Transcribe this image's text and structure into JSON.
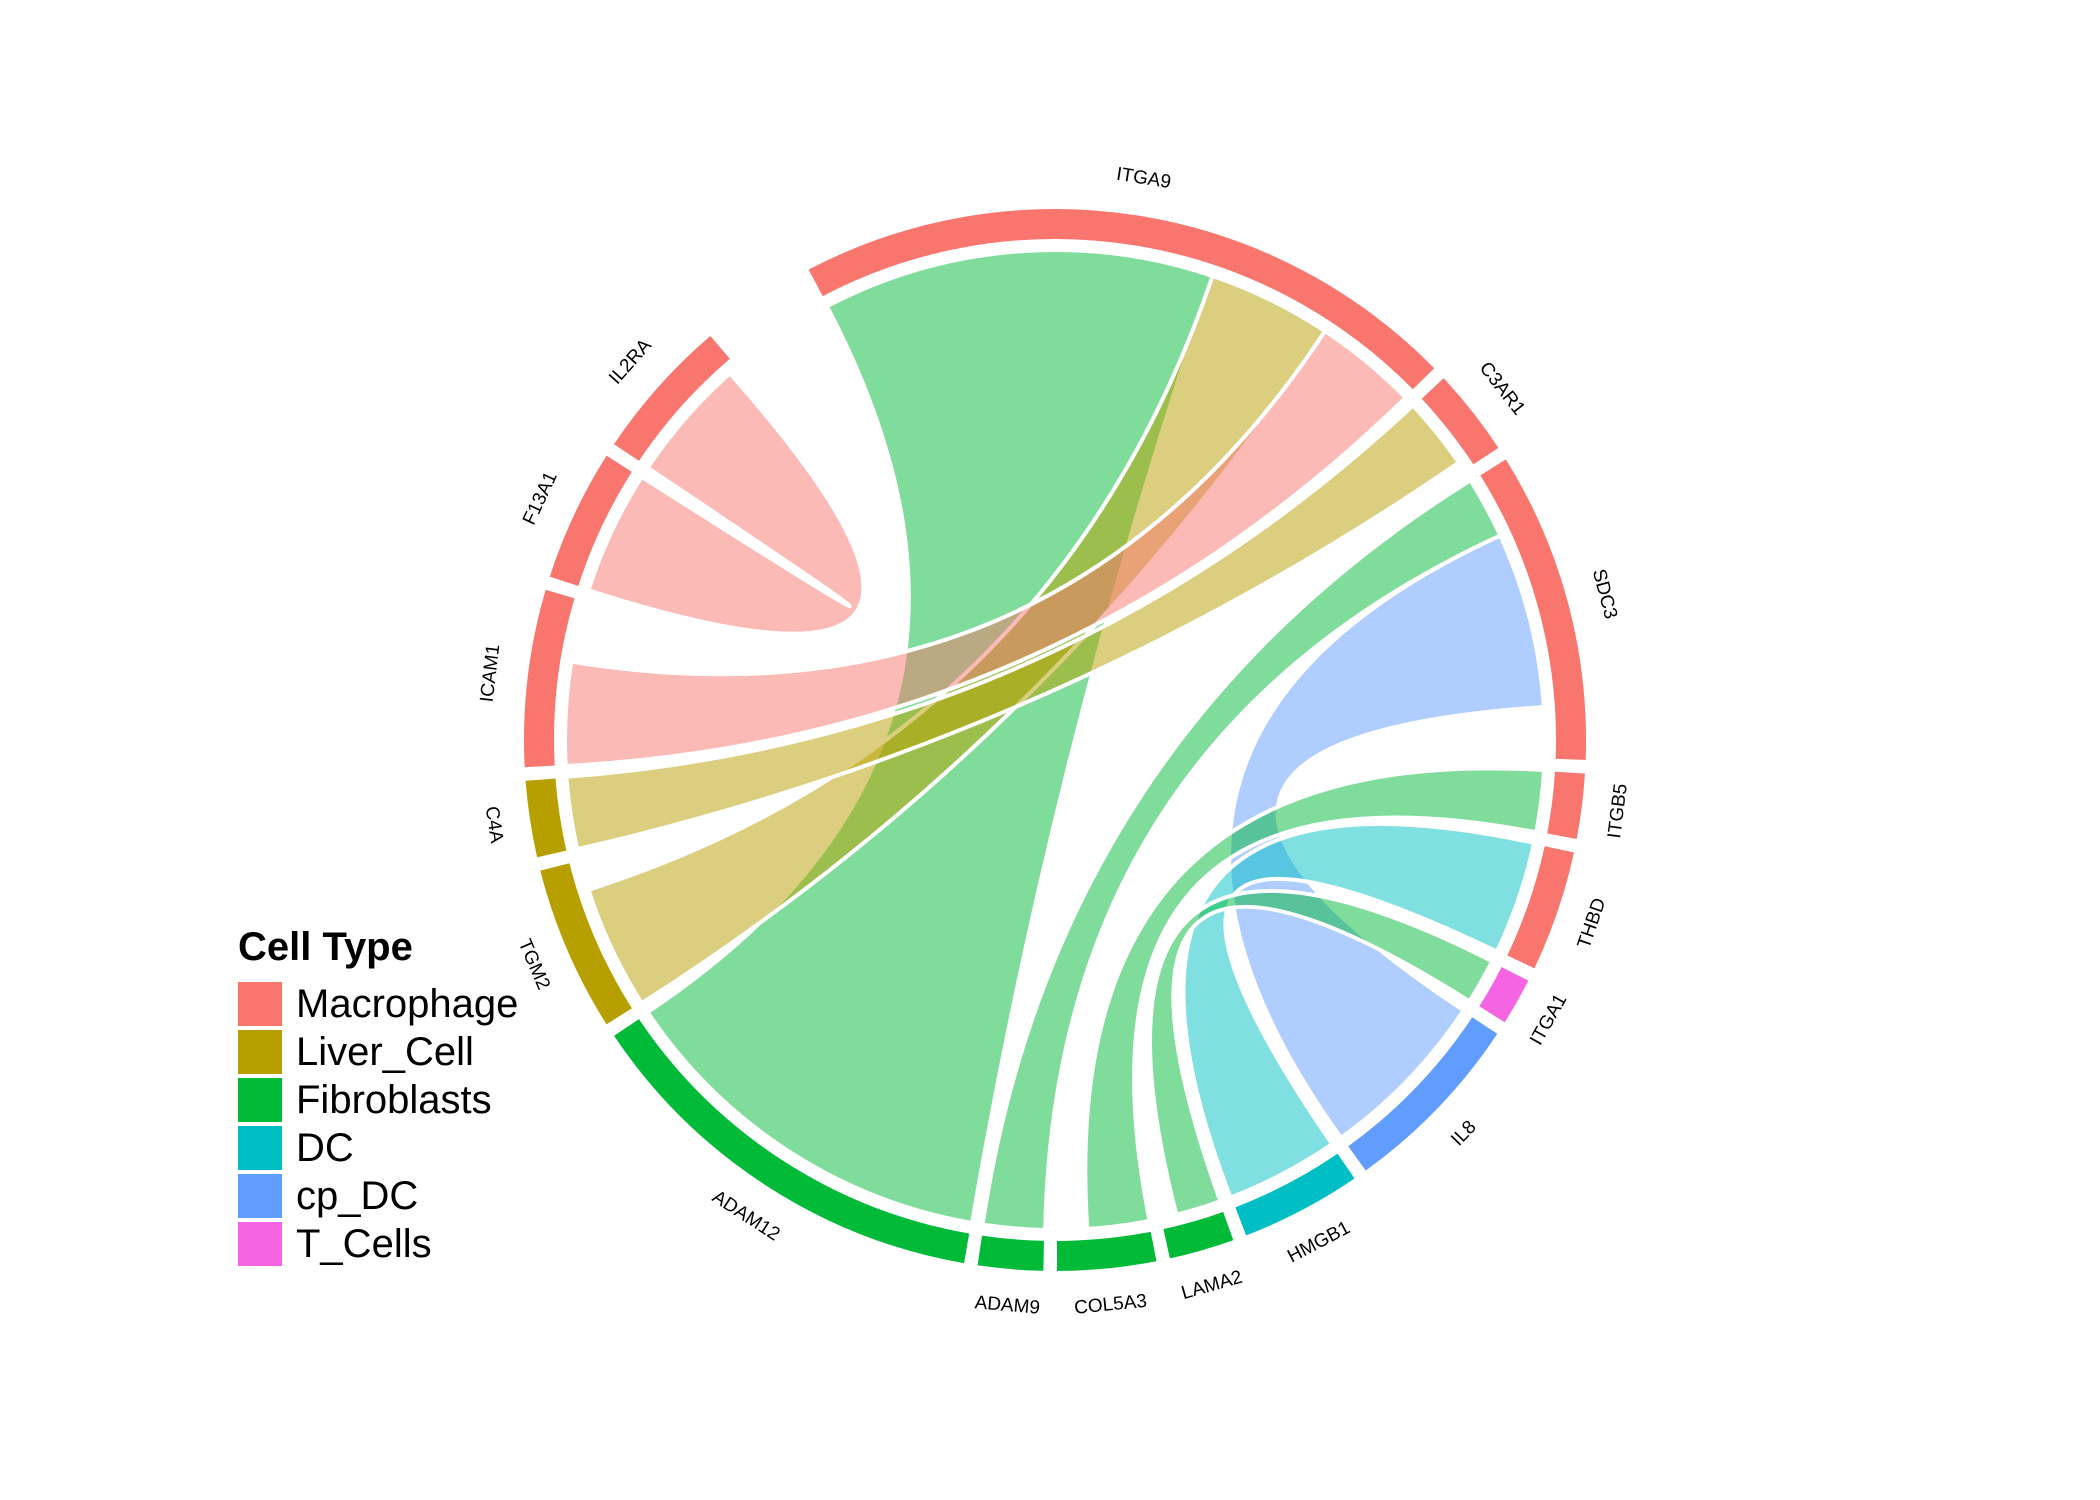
{
  "chart_data": {
    "type": "chord",
    "legend": {
      "title": "Cell Type",
      "placement": "left",
      "items": [
        {
          "name": "Macrophage",
          "color": "#F8766D"
        },
        {
          "name": "Liver_Cell",
          "color": "#B79F00"
        },
        {
          "name": "Fibroblasts",
          "color": "#00BA38"
        },
        {
          "name": "DC",
          "color": "#00BFC4"
        },
        {
          "name": "cp_DC",
          "color": "#619CFF"
        },
        {
          "name": "T_Cells",
          "color": "#F564E3"
        }
      ]
    },
    "sectors": [
      {
        "label": "ITGA9",
        "cell_type": "Macrophage",
        "value": 3.0
      },
      {
        "label": "C3AR1",
        "cell_type": "Macrophage",
        "value": 0.4
      },
      {
        "label": "SDC3",
        "cell_type": "Macrophage",
        "value": 1.4
      },
      {
        "label": "ITGB5",
        "cell_type": "Macrophage",
        "value": 0.3
      },
      {
        "label": "THBD",
        "cell_type": "Macrophage",
        "value": 0.55
      },
      {
        "label": "ITGA1",
        "cell_type": "T_Cells",
        "value": 0.22
      },
      {
        "label": "IL8",
        "cell_type": "cp_DC",
        "value": 0.85
      },
      {
        "label": "HMGB1",
        "cell_type": "DC",
        "value": 0.55
      },
      {
        "label": "LAMA2",
        "cell_type": "Fibroblasts",
        "value": 0.3
      },
      {
        "label": "COL5A3",
        "cell_type": "Fibroblasts",
        "value": 0.45
      },
      {
        "label": "ADAM9",
        "cell_type": "Fibroblasts",
        "value": 0.3
      },
      {
        "label": "ADAM12",
        "cell_type": "Fibroblasts",
        "value": 1.9
      },
      {
        "label": "TGM2",
        "cell_type": "Liver_Cell",
        "value": 0.75
      },
      {
        "label": "C4A",
        "cell_type": "Liver_Cell",
        "value": 0.35
      },
      {
        "label": "ICAM1",
        "cell_type": "Macrophage",
        "value": 0.8
      },
      {
        "label": "F13A1",
        "cell_type": "Macrophage",
        "value": 0.6
      },
      {
        "label": "IL2RA",
        "cell_type": "Macrophage",
        "value": 0.65
      }
    ],
    "links": [
      {
        "from": "ITGA9",
        "to": "ADAM12",
        "value": 1.9,
        "color": "#00BA38"
      },
      {
        "from": "ITGA9",
        "to": "TGM2",
        "value": 0.6,
        "color": "#B79F00"
      },
      {
        "from": "ITGA9",
        "to": "ICAM1",
        "value": 0.5,
        "color": "#F8766D"
      },
      {
        "from": "C3AR1",
        "to": "C4A",
        "value": 0.35,
        "color": "#B79F00"
      },
      {
        "from": "SDC3",
        "to": "ADAM9",
        "value": 0.3,
        "color": "#00BA38"
      },
      {
        "from": "SDC3",
        "to": "IL8",
        "value": 0.85,
        "color": "#619CFF"
      },
      {
        "from": "ITGB5",
        "to": "COL5A3",
        "value": 0.3,
        "color": "#00BA38"
      },
      {
        "from": "THBD",
        "to": "HMGB1",
        "value": 0.55,
        "color": "#00BFC4"
      },
      {
        "from": "ITGA1",
        "to": "LAMA2",
        "value": 0.22,
        "color": "#00BA38"
      },
      {
        "from": "IL2RA",
        "to": "F13A1",
        "value": 0.6,
        "color": "#F8766D"
      }
    ]
  }
}
